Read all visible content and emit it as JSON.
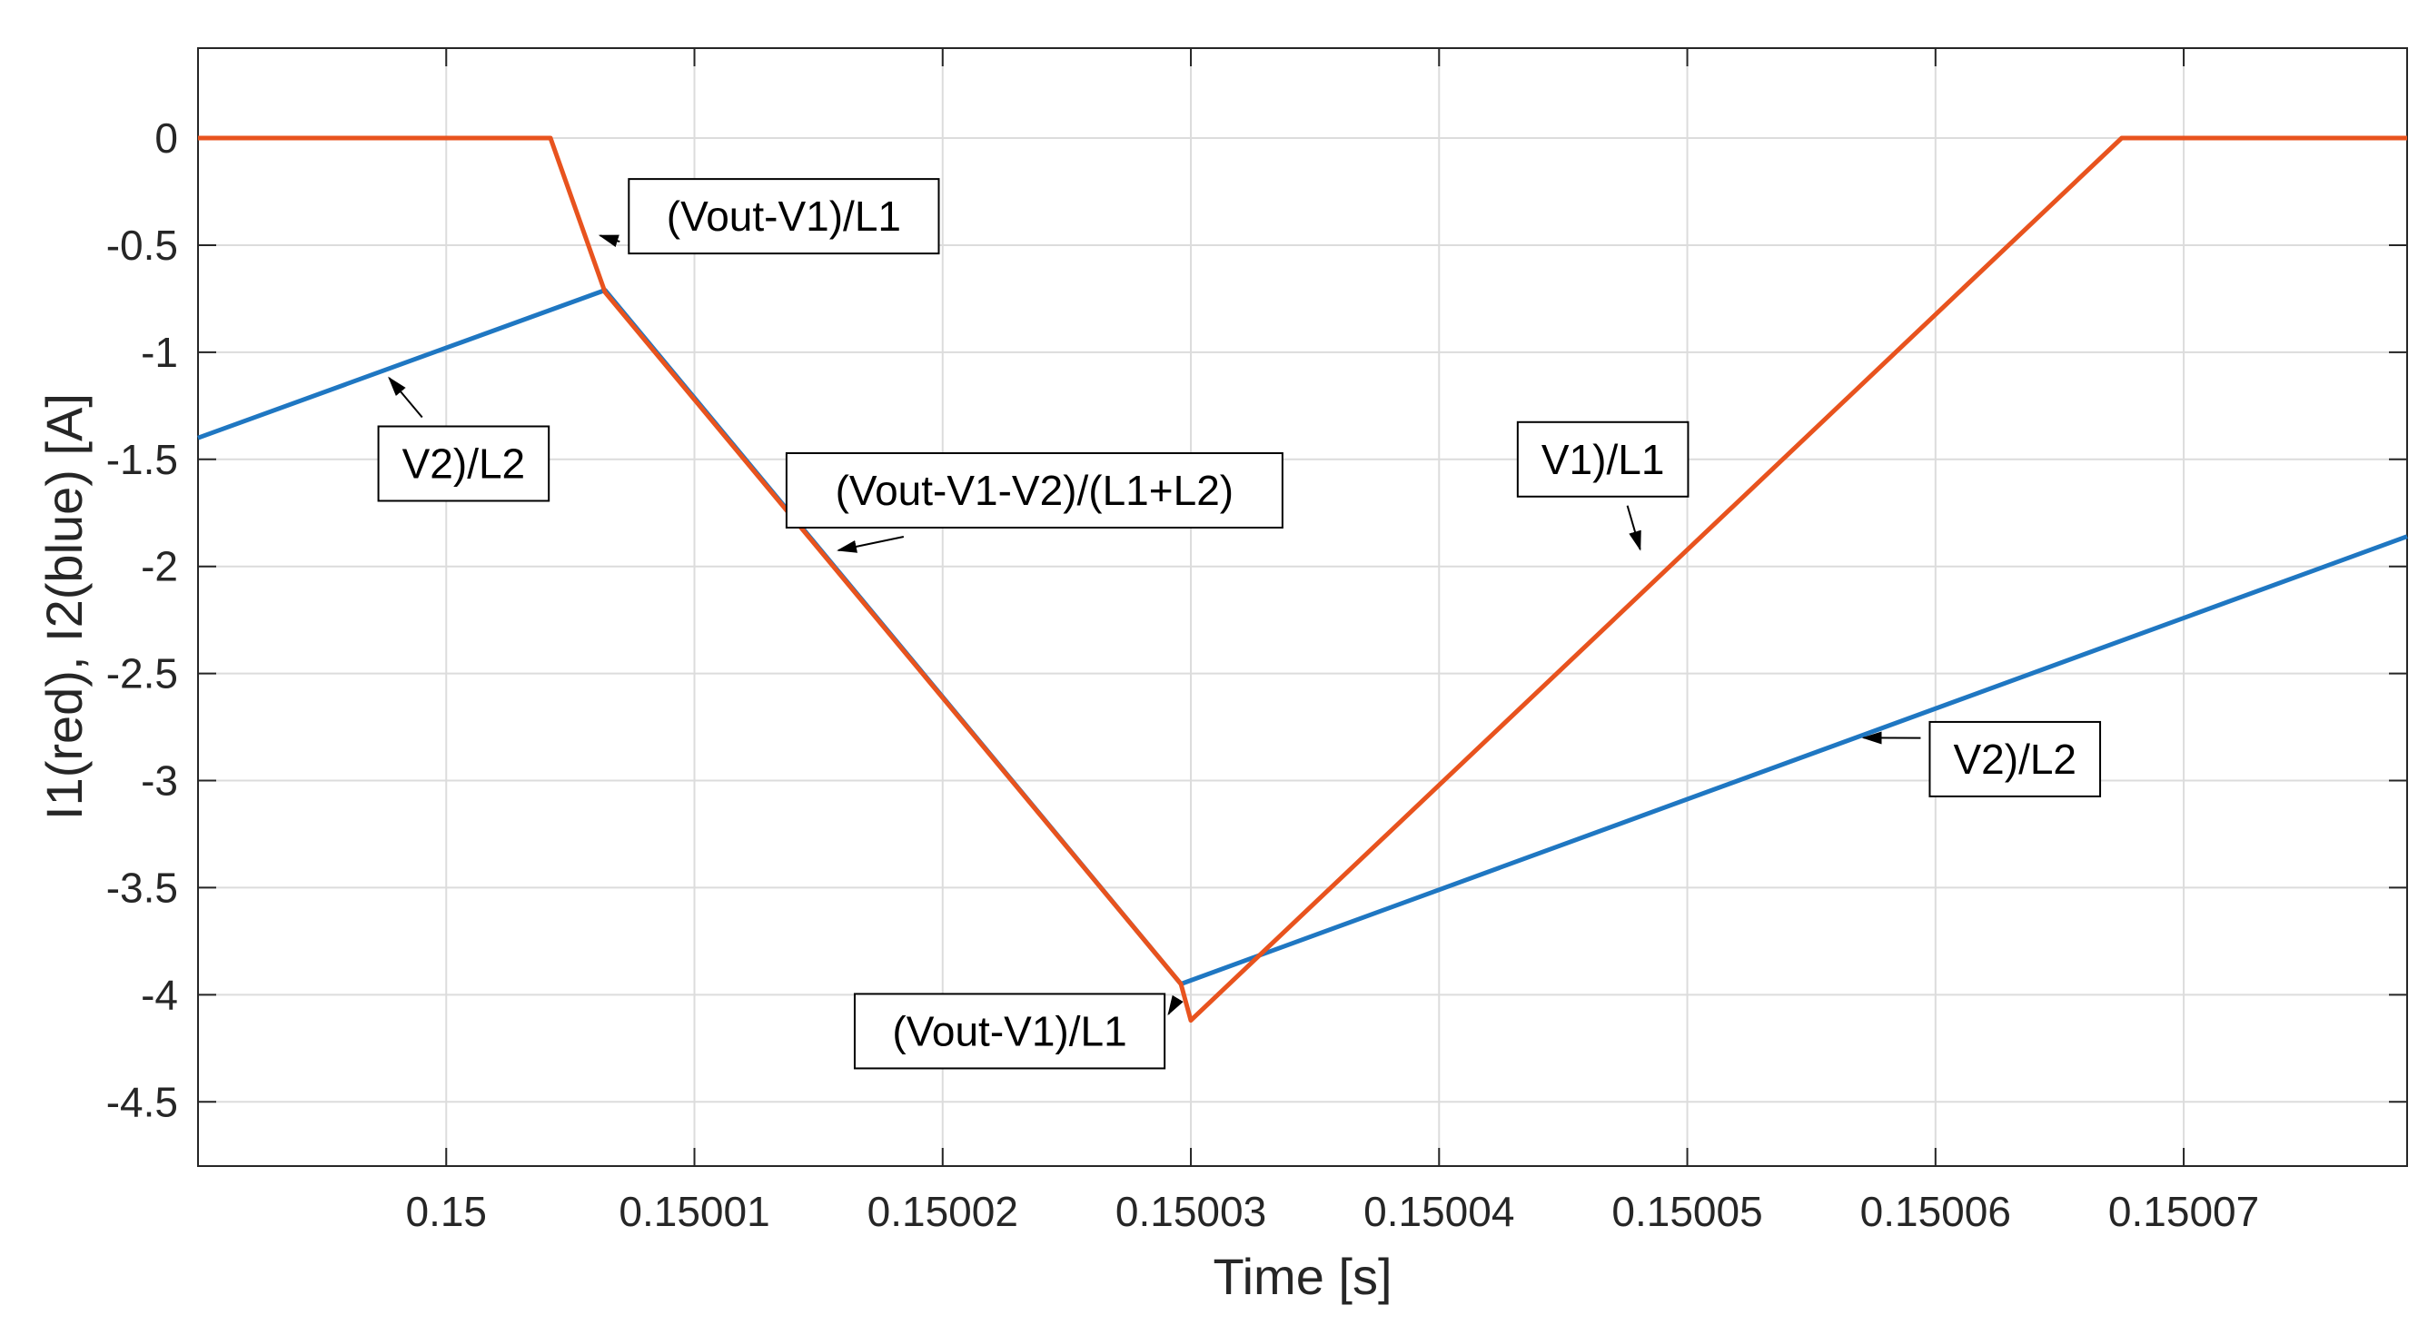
{
  "chart_data": {
    "type": "line",
    "xlabel": "Time [s]",
    "ylabel": "I1(red), I2(blue) [A]",
    "xlim": [
      0.14999,
      0.150079
    ],
    "ylim": [
      -4.8,
      0.42
    ],
    "grid": true,
    "xticks": [
      0.15,
      0.15001,
      0.15002,
      0.15003,
      0.15004,
      0.15005,
      0.15006,
      0.15007
    ],
    "xtick_labels": [
      "0.15",
      "0.15001",
      "0.15002",
      "0.15003",
      "0.15004",
      "0.15005",
      "0.15006",
      "0.15007"
    ],
    "yticks": [
      0,
      -0.5,
      -1,
      -1.5,
      -2,
      -2.5,
      -3,
      -3.5,
      -4,
      -4.5
    ],
    "ytick_labels": [
      "0",
      "-0.5",
      "-1",
      "-1.5",
      "-2",
      "-2.5",
      "-3",
      "-3.5",
      "-4",
      "-4.5"
    ],
    "series": [
      {
        "color": "#e8531e",
        "x": [
          0.14999,
          0.1500042,
          0.1500064,
          0.1500296,
          0.15003,
          0.1500675,
          0.150079
        ],
        "y": [
          0,
          0,
          -0.72,
          -3.95,
          -4.12,
          0,
          0
        ]
      },
      {
        "color": "#1f77c2",
        "x": [
          0.14999,
          0.1500064,
          0.1500296,
          0.150079
        ],
        "y": [
          -1.4,
          -0.71,
          -3.95,
          -1.86
        ]
      }
    ],
    "annotations": [
      {
        "text": "(Vout-V1)/L1",
        "x": 0.1500136,
        "y": -0.365,
        "arrow_to": [
          0.1500062,
          -0.455
        ]
      },
      {
        "text": "V2)/L2",
        "x": 0.1500007,
        "y": -1.52,
        "arrow_to": [
          0.1499977,
          -1.12
        ]
      },
      {
        "text": "(Vout-V1-V2)/(L1+L2)",
        "x": 0.1500237,
        "y": -1.645,
        "arrow_to": [
          0.1500158,
          -1.925
        ]
      },
      {
        "text": "V1)/L1",
        "x": 0.1500466,
        "y": -1.5,
        "arrow_to": [
          0.1500481,
          -1.92
        ]
      },
      {
        "text": "(Vout-V1)/L1",
        "x": 0.1500227,
        "y": -4.17,
        "arrow_to": [
          0.1500291,
          -4.09
        ]
      },
      {
        "text": "V2)/L2",
        "x": 0.1500632,
        "y": -2.9,
        "arrow_to": [
          0.1500571,
          -2.8
        ]
      }
    ]
  }
}
